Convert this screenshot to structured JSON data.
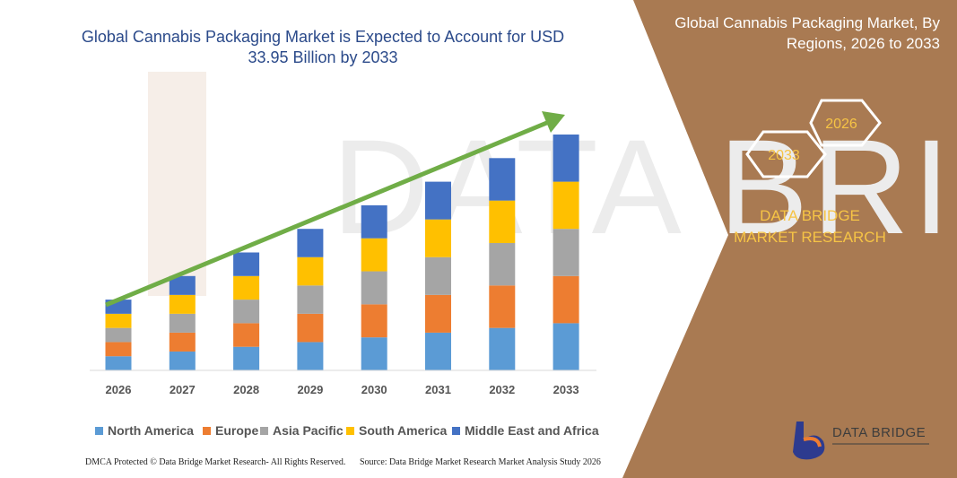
{
  "title": "Global Cannabis Packaging Market is Expected to Account for USD 33.95 Billion by 2033",
  "panel": {
    "title": "Global Cannabis Packaging Market, By Regions, 2026 to 2033",
    "hex_labels": [
      "2026",
      "2033"
    ],
    "brand": "DATA BRIDGE MARKET RESEARCH"
  },
  "watermark": {
    "text": "DATA BRIDGE"
  },
  "logo": {
    "name": "DATA BRIDGE"
  },
  "footer": {
    "left": "DMCA Protected © Data Bridge Market Research- All Rights Reserved.",
    "right": "Source: Data Bridge Market Research  Market Analysis Study 2026"
  },
  "colors": {
    "north_america": "#5b9bd5",
    "europe": "#ed7d31",
    "asia_pacific": "#a5a5a5",
    "south_america": "#ffc000",
    "mea": "#4472c4",
    "arrow": "#70ad47",
    "panel": "#a97a52",
    "title": "#2b4a8a",
    "brand": "#f6c445"
  },
  "chart_data": {
    "type": "bar",
    "stacked": true,
    "categories": [
      "2026",
      "2027",
      "2028",
      "2029",
      "2030",
      "2031",
      "2032",
      "2033"
    ],
    "series": [
      {
        "name": "North America",
        "values": [
          3,
          4,
          5,
          6,
          7,
          8,
          9,
          10
        ]
      },
      {
        "name": "Europe",
        "values": [
          3,
          4,
          5,
          6,
          7,
          8,
          9,
          10
        ]
      },
      {
        "name": "Asia Pacific",
        "values": [
          3,
          4,
          5,
          6,
          7,
          8,
          9,
          10
        ]
      },
      {
        "name": "South America",
        "values": [
          3,
          4,
          5,
          6,
          7,
          8,
          9,
          10
        ]
      },
      {
        "name": "Middle East and Africa",
        "values": [
          3,
          4,
          5,
          6,
          7,
          8,
          9,
          10
        ]
      }
    ],
    "ylim": [
      0,
      50
    ],
    "legend_position": "bottom",
    "grid": false,
    "trend_arrow": true
  }
}
